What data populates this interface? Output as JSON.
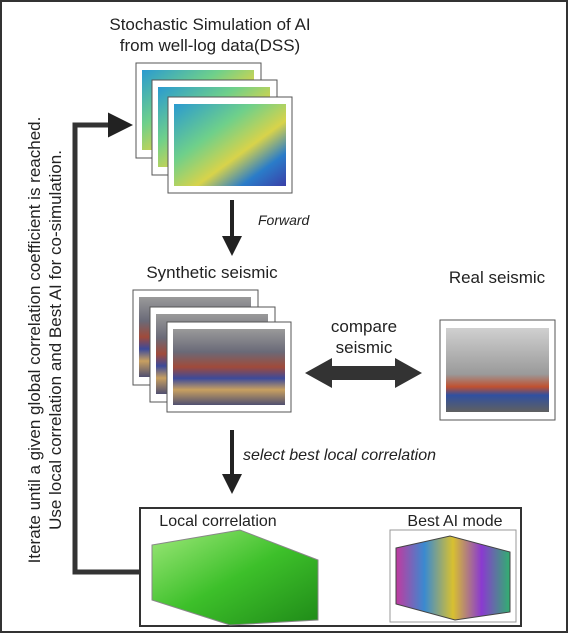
{
  "side_note": {
    "lines": [
      "Iterate  until a given global correlation coefficient is reached.",
      "Use local correlation and Best AI for co-simulation."
    ]
  },
  "nodes": [
    {
      "label_lines": [
        "Stochastic Simulation of AI",
        "from well-log data(DSS)"
      ]
    },
    {
      "label": "Synthetic seismic"
    },
    {
      "label": "Real seismic"
    },
    {
      "label": "Local correlation"
    },
    {
      "label": "Best AI mode"
    }
  ],
  "edges": [
    {
      "label": "Forward"
    },
    {
      "label_lines": [
        "compare",
        "seismic"
      ]
    },
    {
      "label": "select best local correlation"
    }
  ]
}
